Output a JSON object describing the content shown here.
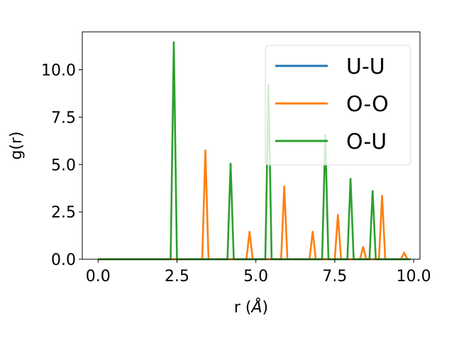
{
  "chart_data": {
    "type": "line",
    "title": "",
    "xlabel": "r (",
    "xlabel_symbol": "Å",
    "xlabel_close": ")",
    "ylabel": "g(r)",
    "xlim": [
      -0.5,
      10.2
    ],
    "ylim": [
      0,
      12
    ],
    "xticks": [
      0.0,
      2.5,
      5.0,
      7.5,
      10.0
    ],
    "xtick_labels": [
      "0.0",
      "2.5",
      "5.0",
      "7.5",
      "10.0"
    ],
    "yticks": [
      0.0,
      2.5,
      5.0,
      7.5,
      10.0
    ],
    "ytick_labels": [
      "0.0",
      "2.5",
      "5.0",
      "7.5",
      "10.0"
    ],
    "grid": false,
    "legend_position": "upper-right",
    "series": [
      {
        "name": "U-U",
        "color": "#1f77b4",
        "x": [
          0.0,
          9.9
        ],
        "y": [
          0.0,
          0.0
        ]
      },
      {
        "name": "O-O",
        "color": "#ff7f0e",
        "x": [
          0.0,
          3.3,
          3.4,
          3.5,
          4.7,
          4.8,
          4.9,
          5.8,
          5.9,
          6.0,
          6.7,
          6.8,
          6.9,
          7.5,
          7.6,
          7.7,
          8.3,
          8.4,
          8.5,
          8.9,
          9.0,
          9.1,
          9.6,
          9.7,
          9.8,
          9.9
        ],
        "y": [
          0.0,
          0.0,
          5.75,
          0.0,
          0.0,
          1.45,
          0.0,
          0.0,
          3.85,
          0.0,
          0.0,
          1.45,
          0.0,
          0.0,
          2.35,
          0.0,
          0.0,
          0.65,
          0.0,
          0.0,
          3.35,
          0.0,
          0.0,
          0.35,
          0.0,
          0.0
        ]
      },
      {
        "name": "O-U",
        "color": "#2ca02c",
        "x": [
          0.0,
          2.3,
          2.4,
          2.5,
          4.1,
          4.2,
          4.3,
          5.3,
          5.4,
          5.5,
          7.1,
          7.2,
          7.3,
          7.9,
          8.0,
          8.1,
          8.6,
          8.7,
          8.8,
          9.9
        ],
        "y": [
          0.0,
          0.0,
          11.45,
          0.0,
          0.0,
          5.05,
          0.0,
          0.0,
          9.2,
          0.0,
          0.0,
          6.55,
          0.0,
          0.0,
          4.25,
          0.0,
          0.0,
          3.6,
          0.0,
          0.0
        ]
      }
    ]
  }
}
